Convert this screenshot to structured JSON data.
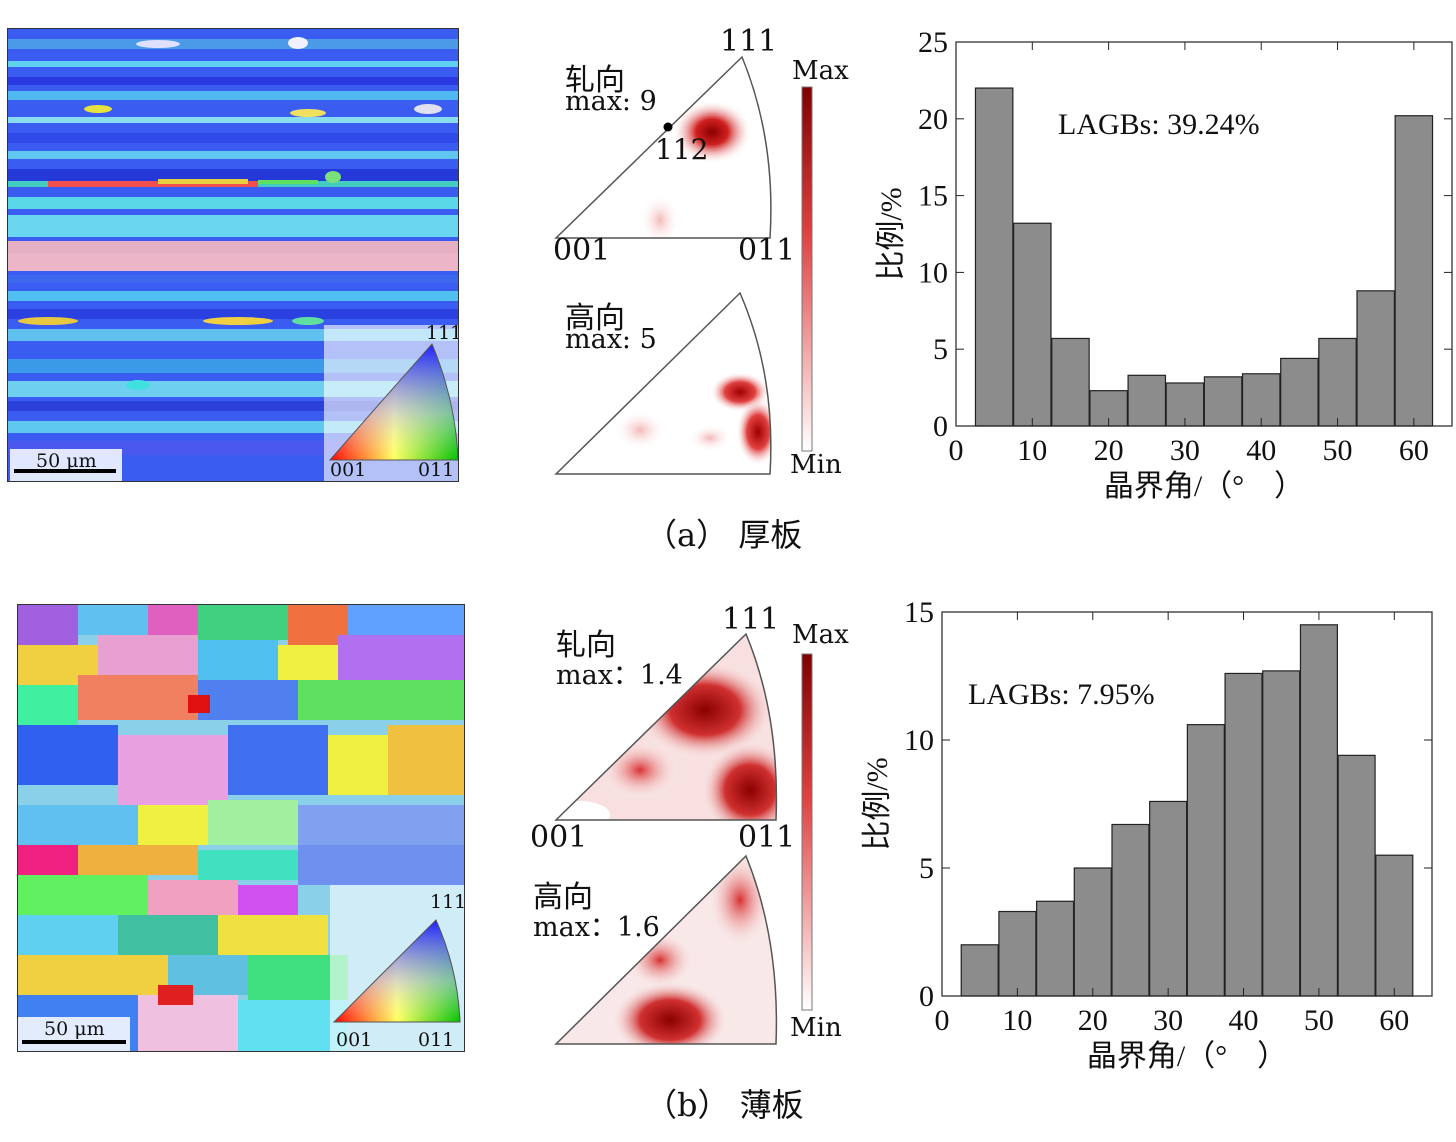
{
  "captions": {
    "a": "（a） 厚板",
    "b": "（b） 薄板"
  },
  "ebsd": [
    {
      "scale_bar": "50 μm",
      "key_labels": {
        "top": "111",
        "left": "001",
        "right": "011"
      }
    },
    {
      "scale_bar": "50 μm",
      "key_labels": {
        "top": "111",
        "left": "001",
        "right": "011"
      }
    }
  ],
  "ipf": {
    "a": {
      "rd": {
        "title": "轧向",
        "max": "max: 9",
        "pole_label": "112"
      },
      "nd": {
        "title": "高向",
        "max": "max: 5"
      },
      "corner_labels": {
        "top": "111",
        "left": "001",
        "right": "011"
      },
      "colorbar": {
        "max": "Max",
        "min": "Min"
      }
    },
    "b": {
      "rd": {
        "title": "轧向",
        "max": "max：1.4"
      },
      "nd": {
        "title": "高向",
        "max": "max：1.6"
      },
      "corner_labels": {
        "top": "111",
        "left": "001",
        "right": "011"
      },
      "colorbar": {
        "max": "Max",
        "min": "Min"
      }
    }
  },
  "chart_data": [
    {
      "type": "bar",
      "title": "",
      "annotation": "LAGBs: 39.24%",
      "xlabel": "晶界角/（°　）",
      "ylabel": "比例/%",
      "x": [
        5,
        10,
        15,
        20,
        25,
        30,
        35,
        40,
        45,
        50,
        55,
        60
      ],
      "values": [
        22.0,
        13.2,
        5.7,
        2.3,
        3.3,
        2.8,
        3.2,
        3.4,
        4.4,
        5.7,
        8.8,
        20.2
      ],
      "bin_width": 4.9,
      "xlim": [
        0,
        65
      ],
      "ylim": [
        0,
        25
      ],
      "xticks": [
        0,
        10,
        20,
        30,
        40,
        50,
        60
      ],
      "yticks": [
        0,
        5,
        10,
        15,
        20,
        25
      ],
      "bar_color": "#8c8c8c"
    },
    {
      "type": "bar",
      "title": "",
      "annotation": "LAGBs: 7.95%",
      "xlabel": "晶界角/（°　）",
      "ylabel": "比例/%",
      "x": [
        5,
        10,
        15,
        20,
        25,
        30,
        35,
        40,
        45,
        50,
        55,
        60
      ],
      "values": [
        2.0,
        3.3,
        3.7,
        5.0,
        6.7,
        7.6,
        10.6,
        12.6,
        12.7,
        14.5,
        9.4,
        5.5
      ],
      "bin_width": 4.9,
      "xlim": [
        0,
        65
      ],
      "ylim": [
        0,
        15
      ],
      "xticks": [
        0,
        10,
        20,
        30,
        40,
        50,
        60
      ],
      "yticks": [
        0,
        5,
        10,
        15
      ],
      "bar_color": "#8c8c8c"
    }
  ]
}
